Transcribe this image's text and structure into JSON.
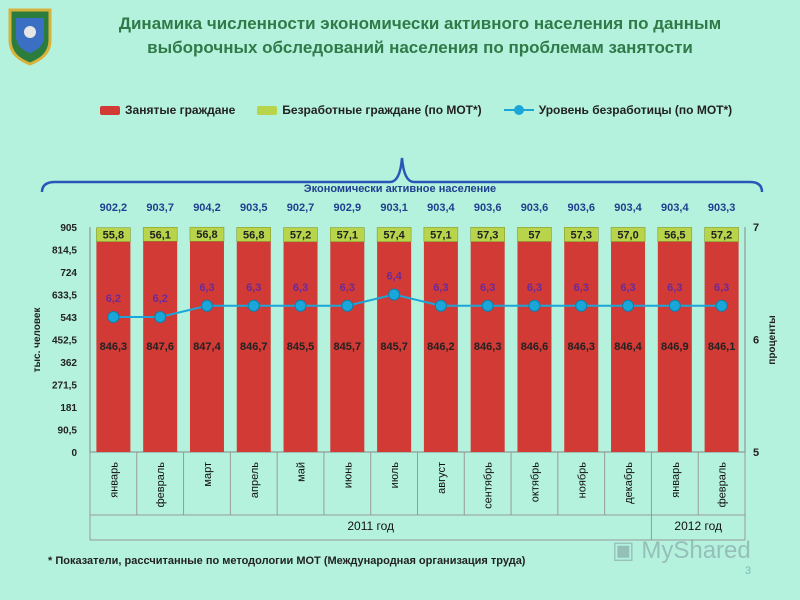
{
  "title": "Динамика численности экономически активного населения по данным выборочных обследований населения по проблемам занятости",
  "footnote": "* Показатели, рассчитанные по методологии МОТ (Международная организация труда)",
  "page_number": "3",
  "watermark": "MyShared",
  "colors": {
    "employed": "#d23a35",
    "unemployed": "#b8d44a",
    "rate": "#1aa6d8",
    "bg": "#b5f2dd",
    "title": "#2f7a48"
  },
  "chart_data": {
    "type": "bar",
    "stacked": true,
    "brace_label": "Экономически активное население",
    "categories": [
      "январь",
      "февраль",
      "март",
      "апрель",
      "май",
      "июнь",
      "июль",
      "август",
      "сентябрь",
      "октябрь",
      "ноябрь",
      "декабрь",
      "январь",
      "февраль"
    ],
    "year_groups": [
      {
        "label": "2011 год",
        "count": 12
      },
      {
        "label": "2012 год",
        "count": 2
      }
    ],
    "totals": [
      "902,2",
      "903,7",
      "904,2",
      "903,5",
      "902,7",
      "902,9",
      "903,1",
      "903,4",
      "903,6",
      "903,6",
      "903,6",
      "903,4",
      "903,4",
      "903,3"
    ],
    "series": [
      {
        "name": "Занятые граждане",
        "axis": "left",
        "labels": [
          "846,3",
          "847,6",
          "847,4",
          "846,7",
          "845,5",
          "845,7",
          "845,7",
          "846,2",
          "846,3",
          "846,6",
          "846,3",
          "846,4",
          "846,9",
          "846,1"
        ],
        "values": [
          846.3,
          847.6,
          847.4,
          846.7,
          845.5,
          845.7,
          845.7,
          846.2,
          846.3,
          846.6,
          846.3,
          846.4,
          846.9,
          846.1
        ]
      },
      {
        "name": "Безработные граждане (по МОТ*)",
        "axis": "left",
        "labels": [
          "55,8",
          "56,1",
          "56,8",
          "56,8",
          "57,2",
          "57,1",
          "57,4",
          "57,1",
          "57,3",
          "57",
          "57,3",
          "57,0",
          "56,5",
          "57,2"
        ],
        "values": [
          55.8,
          56.1,
          56.8,
          56.8,
          57.2,
          57.1,
          57.4,
          57.1,
          57.3,
          57,
          57.3,
          57.0,
          56.5,
          57.2
        ]
      },
      {
        "name": "Уровень безработицы (по МОТ*)",
        "type": "line",
        "axis": "right",
        "labels": [
          "6,2",
          "6,2",
          "6,3",
          "6,3",
          "6,3",
          "6,3",
          "6,4",
          "6,3",
          "6,3",
          "6,3",
          "6,3",
          "6,3",
          "6,3",
          "6,3"
        ],
        "values": [
          6.2,
          6.2,
          6.3,
          6.3,
          6.3,
          6.3,
          6.4,
          6.3,
          6.3,
          6.3,
          6.3,
          6.3,
          6.3,
          6.3
        ]
      }
    ],
    "ylabel": "тыс. человек",
    "y2label": "проценты",
    "ylim": [
      0,
      905
    ],
    "yticks": [
      "0",
      "90,5",
      "181",
      "271,5",
      "362",
      "452,5",
      "543",
      "633,5",
      "724",
      "814,5",
      "905"
    ],
    "y2lim": [
      5,
      7
    ],
    "y2ticks": [
      "5",
      "6",
      "7"
    ],
    "legend": "top"
  }
}
